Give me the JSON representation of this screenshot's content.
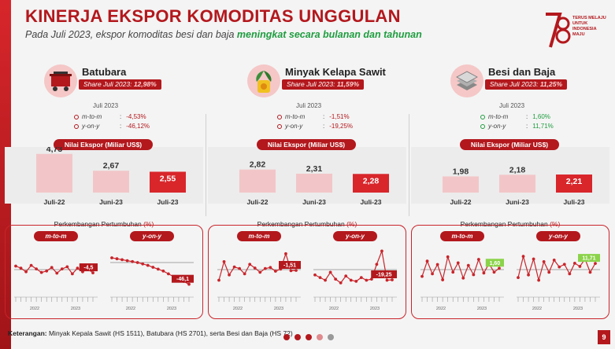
{
  "header": {
    "title": "KINERJA EKSPOR KOMODITAS UNGGULAN",
    "subtitle_pre": "Pada Juli 2023, ekspor komoditas besi dan baja ",
    "subtitle_highlight": "meningkat secara bulanan dan tahunan",
    "logo_number": "78",
    "logo_text": "TERUS MELAJU UNTUK INDONESIA MAJU"
  },
  "labels": {
    "period": "Juli 2023",
    "mtm": "m-to-m",
    "yoy": "y-on-y",
    "nilai": "Nilai Ekspor (Miliar US$)",
    "growth_title": "Perkembangan Pertumbuhan",
    "growth_unit": "(%)",
    "year_a": "2022",
    "year_b": "2023"
  },
  "commodities": [
    {
      "name": "Batubara",
      "share_label": "Share Juli 2023:",
      "share_value": "12,98%",
      "mtm": "-4,53%",
      "yoy": "-46,12%",
      "mtm_dir": "down",
      "yoy_dir": "down",
      "icon": "coal-cart-icon",
      "last_mtm_label": "-4,5",
      "last_yoy_label": "-46,1"
    },
    {
      "name": "Minyak Kelapa Sawit",
      "share_label": "Share Juli 2023:",
      "share_value": "11,59%",
      "mtm": "-1,51%",
      "yoy": "-19,25%",
      "mtm_dir": "down",
      "yoy_dir": "down",
      "icon": "palm-oil-icon",
      "last_mtm_label": "-1,51",
      "last_yoy_label": "-19,25"
    },
    {
      "name": "Besi dan Baja",
      "share_label": "Share Juli 2023:",
      "share_value": "11,25%",
      "mtm": "1,60%",
      "yoy": "11,71%",
      "mtm_dir": "up",
      "yoy_dir": "up",
      "icon": "steel-plates-icon",
      "last_mtm_label": "1,60",
      "last_yoy_label": "11,71"
    }
  ],
  "chart_data": [
    {
      "type": "bar",
      "title": "Batubara - Nilai Ekspor (Miliar US$)",
      "categories": [
        "Juli-22",
        "Juni-23",
        "Juli-23"
      ],
      "values": [
        4.73,
        2.67,
        2.55
      ],
      "value_labels": [
        "4,73",
        "2,67",
        "2,55"
      ],
      "ylim": [
        0,
        5
      ]
    },
    {
      "type": "bar",
      "title": "Minyak Kelapa Sawit - Nilai Ekspor (Miliar US$)",
      "categories": [
        "Juli-22",
        "Juni-23",
        "Juli-23"
      ],
      "values": [
        2.82,
        2.31,
        2.28
      ],
      "value_labels": [
        "2,82",
        "2,31",
        "2,28"
      ],
      "ylim": [
        0,
        5
      ]
    },
    {
      "type": "bar",
      "title": "Besi dan Baja - Nilai Ekspor (Miliar US$)",
      "categories": [
        "Juli-22",
        "Juni-23",
        "Juli-23"
      ],
      "values": [
        1.98,
        2.18,
        2.21
      ],
      "value_labels": [
        "1,98",
        "2,18",
        "2,21"
      ],
      "ylim": [
        0,
        5
      ]
    },
    {
      "type": "line",
      "title": "Batubara m-to-m (%)",
      "values": [
        5,
        2,
        -3,
        6,
        1,
        -4,
        -2,
        3,
        -5,
        1,
        4,
        -6,
        2,
        -3,
        1,
        -4.53
      ],
      "ylim": [
        -30,
        30
      ]
    },
    {
      "type": "line",
      "title": "Batubara y-on-y (%)",
      "values": [
        10,
        8,
        6,
        4,
        2,
        0,
        -3,
        -6,
        -10,
        -14,
        -18,
        -24,
        -30,
        -36,
        -40,
        -46.12
      ],
      "ylim": [
        -60,
        30
      ]
    },
    {
      "type": "line",
      "title": "Minyak Kelapa Sawit m-to-m (%)",
      "values": [
        -20,
        15,
        -10,
        5,
        2,
        -8,
        10,
        3,
        -5,
        2,
        4,
        -3,
        1,
        30,
        -2,
        -1.51
      ],
      "ylim": [
        -40,
        40
      ]
    },
    {
      "type": "line",
      "title": "Minyak Kelapa Sawit y-on-y (%)",
      "values": [
        -10,
        -15,
        -20,
        -5,
        -18,
        -25,
        -12,
        -20,
        -22,
        -15,
        -20,
        -18,
        10,
        35,
        -20,
        -19.25
      ],
      "ylim": [
        -40,
        40
      ]
    },
    {
      "type": "line",
      "title": "Besi dan Baja m-to-m (%)",
      "values": [
        -8,
        10,
        -5,
        6,
        -12,
        15,
        -3,
        8,
        -10,
        5,
        -6,
        12,
        -4,
        7,
        -3,
        1.6
      ],
      "ylim": [
        -25,
        25
      ]
    },
    {
      "type": "line",
      "title": "Besi dan Baja y-on-y (%)",
      "values": [
        -15,
        25,
        -10,
        20,
        -20,
        15,
        -5,
        18,
        5,
        10,
        -8,
        12,
        6,
        20,
        -5,
        11.71
      ],
      "ylim": [
        -40,
        40
      ]
    }
  ]
}
